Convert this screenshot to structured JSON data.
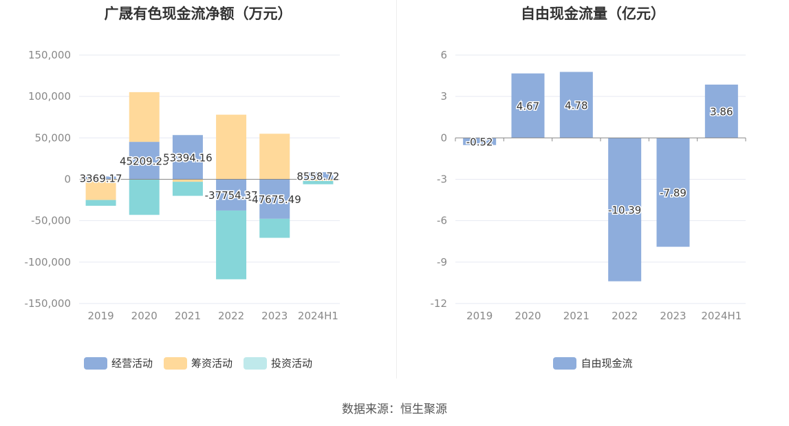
{
  "source_text": "数据来源：恒生聚源",
  "colors": {
    "operating": "#8eaddc",
    "financing": "#ffd99a",
    "investing": "#86d6d9",
    "fcf": "#8eaddc",
    "grid": "#e6e9f2",
    "axis": "#888888"
  },
  "chart_data": [
    {
      "type": "bar",
      "stacked": true,
      "title": "广晟有色现金流净额（万元）",
      "categories": [
        "2019",
        "2020",
        "2021",
        "2022",
        "2023",
        "2024H1"
      ],
      "ylim": [
        -150000,
        150000
      ],
      "yticks": [
        150000,
        100000,
        50000,
        0,
        -50000,
        -100000,
        -150000
      ],
      "ytick_labels": [
        "150,000",
        "100,000",
        "50,000",
        "0",
        "-50,000",
        "-100,000",
        "-150,000"
      ],
      "grid": true,
      "legend_position": "bottom",
      "series": [
        {
          "name": "经营活动",
          "color_key": "operating",
          "values": [
            3369.17,
            45209.25,
            53394.16,
            -37754.37,
            -47675.49,
            8558.72
          ],
          "data_labels": [
            "3369.17",
            "45209.25",
            "53394.16",
            "-37754.37",
            "-47675.49",
            "8558.72"
          ]
        },
        {
          "name": "筹资活动",
          "color_key": "financing",
          "values": [
            -25000,
            60000,
            -3000,
            78000,
            55000,
            -2000
          ]
        },
        {
          "name": "投资活动",
          "color_key": "investing",
          "values": [
            -7000,
            -43000,
            -17000,
            -83000,
            -23000,
            -4000
          ]
        }
      ]
    },
    {
      "type": "bar",
      "title": "自由现金流量（亿元）",
      "categories": [
        "2019",
        "2020",
        "2021",
        "2022",
        "2023",
        "2024H1"
      ],
      "ylim": [
        -12,
        6
      ],
      "yticks": [
        6,
        3,
        0,
        -3,
        -6,
        -9,
        -12
      ],
      "ytick_labels": [
        "6",
        "3",
        "0",
        "-3",
        "-6",
        "-9",
        "-12"
      ],
      "grid": true,
      "legend_position": "bottom",
      "series": [
        {
          "name": "自由现金流",
          "color_key": "fcf",
          "values": [
            -0.52,
            4.67,
            4.78,
            -10.39,
            -7.89,
            3.86
          ],
          "data_labels": [
            "-0.52",
            "4.67",
            "4.78",
            "-10.39",
            "-7.89",
            "3.86"
          ]
        }
      ]
    }
  ]
}
